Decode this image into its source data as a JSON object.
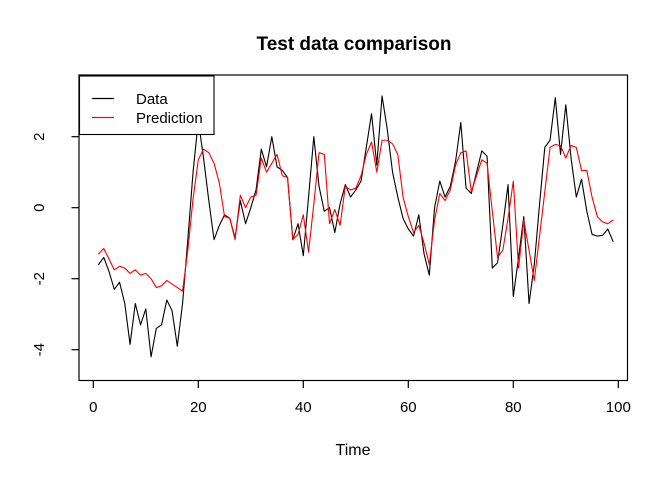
{
  "title": "Test data comparison",
  "axes": {
    "x": {
      "label": "Time",
      "ticks": [
        "0",
        "20",
        "40",
        "60",
        "80",
        "100"
      ],
      "tick_values": [
        0,
        20,
        40,
        60,
        80,
        100
      ]
    },
    "y": {
      "label": "",
      "ticks": [
        "-4",
        "-2",
        "0",
        "2"
      ],
      "tick_values": [
        -4,
        -2,
        0,
        2
      ]
    }
  },
  "legend": {
    "position": "topleft",
    "items": [
      {
        "label": "Data",
        "color": "#000000"
      },
      {
        "label": "Prediction",
        "color": "#FF0000"
      }
    ]
  },
  "colors": {
    "background": "#FFFFFF",
    "foreground": "#000000",
    "accent": "#FF0000"
  },
  "chart_data": {
    "type": "line",
    "title": "Test data comparison",
    "xlabel": "Time",
    "ylabel": "",
    "xlim": [
      0,
      100
    ],
    "ylim": [
      -4.4,
      3.5
    ],
    "grid": false,
    "legend_position": "topleft",
    "x": [
      1,
      2,
      3,
      4,
      5,
      6,
      7,
      8,
      9,
      10,
      11,
      12,
      13,
      14,
      15,
      16,
      17,
      18,
      19,
      20,
      21,
      22,
      23,
      24,
      25,
      26,
      27,
      28,
      29,
      30,
      31,
      32,
      33,
      34,
      35,
      36,
      37,
      38,
      39,
      40,
      41,
      42,
      43,
      44,
      45,
      46,
      47,
      48,
      49,
      50,
      51,
      52,
      53,
      54,
      55,
      56,
      57,
      58,
      59,
      60,
      61,
      62,
      63,
      64,
      65,
      66,
      67,
      68,
      69,
      70,
      71,
      72,
      73,
      74,
      75,
      76,
      77,
      78,
      79,
      80,
      81,
      82,
      83,
      84,
      85,
      86,
      87,
      88,
      89,
      90,
      91,
      92,
      93,
      94,
      95,
      96,
      97,
      98,
      99
    ],
    "series": [
      {
        "name": "Data",
        "color": "#000000",
        "values": [
          -1.6,
          -1.4,
          -1.8,
          -2.3,
          -2.1,
          -2.7,
          -3.85,
          -2.7,
          -3.3,
          -2.85,
          -4.2,
          -3.4,
          -3.3,
          -2.6,
          -2.9,
          -3.9,
          -2.7,
          -0.9,
          1.0,
          2.45,
          1.4,
          0.2,
          -0.9,
          -0.5,
          -0.2,
          -0.3,
          -0.85,
          0.2,
          -0.45,
          0.0,
          0.5,
          1.65,
          1.15,
          2.0,
          1.15,
          1.05,
          0.85,
          -0.9,
          -0.45,
          -1.35,
          0.3,
          2.0,
          0.6,
          -0.1,
          0.0,
          -0.7,
          0.1,
          0.65,
          0.3,
          0.5,
          0.75,
          1.7,
          2.65,
          1.2,
          3.15,
          2.2,
          1.0,
          0.3,
          -0.3,
          -0.6,
          -0.8,
          -0.2,
          -1.3,
          -1.9,
          0.0,
          0.75,
          0.3,
          0.6,
          1.3,
          2.4,
          0.55,
          0.4,
          1.0,
          1.6,
          1.45,
          -1.7,
          -1.55,
          -0.5,
          0.65,
          -2.5,
          -1.4,
          -0.25,
          -2.7,
          -1.6,
          0.1,
          1.7,
          1.9,
          3.1,
          1.5,
          2.9,
          1.4,
          0.3,
          0.8,
          -0.1,
          -0.75,
          -0.8,
          -0.78,
          -0.6,
          -0.95
        ]
      },
      {
        "name": "Prediction",
        "color": "#FF0000",
        "values": [
          -1.3,
          -1.15,
          -1.45,
          -1.75,
          -1.65,
          -1.7,
          -1.85,
          -1.75,
          -1.9,
          -1.85,
          -2.0,
          -2.25,
          -2.2,
          -2.05,
          -2.15,
          -2.25,
          -2.35,
          -1.2,
          0.25,
          1.35,
          1.65,
          1.55,
          1.25,
          0.7,
          -0.25,
          -0.3,
          -0.9,
          0.35,
          0.0,
          0.3,
          0.35,
          1.4,
          1.0,
          1.25,
          1.5,
          0.9,
          0.85,
          -0.9,
          -0.75,
          -0.2,
          -1.25,
          0.1,
          1.55,
          1.5,
          -0.45,
          -0.05,
          -0.5,
          0.6,
          0.5,
          0.55,
          0.9,
          1.5,
          1.85,
          1.0,
          1.9,
          1.9,
          1.8,
          1.5,
          0.3,
          -0.25,
          -0.7,
          -0.5,
          -1.0,
          -1.6,
          -0.35,
          0.4,
          0.2,
          0.5,
          1.2,
          1.55,
          1.6,
          0.45,
          0.9,
          1.35,
          1.25,
          -0.1,
          -1.4,
          -1.2,
          -0.3,
          0.75,
          -1.7,
          -0.35,
          -1.2,
          -2.05,
          -0.8,
          0.45,
          1.7,
          1.78,
          1.75,
          1.4,
          1.75,
          1.7,
          1.05,
          1.05,
          0.3,
          -0.25,
          -0.4,
          -0.45,
          -0.35
        ]
      }
    ]
  }
}
